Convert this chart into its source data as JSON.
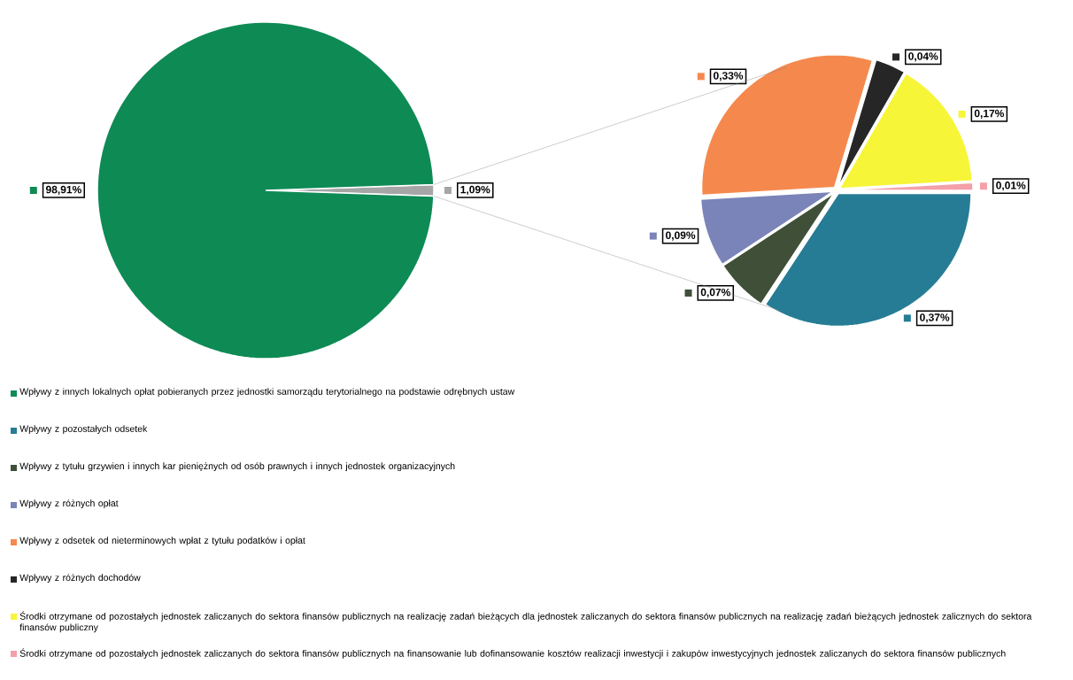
{
  "chart_data": [
    {
      "type": "pie",
      "categories": [
        "Wpływy z innych lokalnych opłat pobieranych przez jednostki samorządu terytorialnego na podstawie odrębnych ustaw",
        null
      ],
      "values": [
        98.91,
        1.09
      ],
      "value_labels": [
        "98,91%",
        "1,09%"
      ],
      "colors": [
        "#0e8a55",
        "#a6a6a6"
      ],
      "legend": "bottom"
    },
    {
      "type": "pie",
      "categories": [
        "Wpływy z pozostałych odsetek",
        "Wpływy z tytułu grzywien i innych kar pieniężnych od osób prawnych i innych jednostek organizacyjnych",
        "Wpływy z różnych opłat",
        "Wpływy z odsetek od nieterminowych wpłat z tytułu podatków i opłat",
        "Wpływy z różnych dochodów",
        "Środki otrzymane od pozostałych jednostek zaliczanych do sektora finansów publicznych na realizację zadań bieżących dla jednostek zaliczanych do sektora finansów publicznych na realizację zadań bieżących jednostek zalicznych do sektora finansów publiczny",
        "Środki otrzymane od pozostałych jednostek zaliczanych do sektora finansów publicznych na finansowanie lub dofinansowanie kosztów realizacji inwestycji i zakupów inwestycyjnych jednostek zaliczanych do sektora finansów publicznych"
      ],
      "values": [
        0.37,
        0.07,
        0.09,
        0.33,
        0.04,
        0.17,
        0.01
      ],
      "value_labels": [
        "0,37%",
        "0,07%",
        "0,09%",
        "0,33%",
        "0,04%",
        "0,17%",
        "0,01%"
      ],
      "colors": [
        "#267c94",
        "#3f4f38",
        "#7a84b8",
        "#f5894d",
        "#262626",
        "#f7f537",
        "#f4a0a8"
      ],
      "legend": "bottom"
    }
  ]
}
